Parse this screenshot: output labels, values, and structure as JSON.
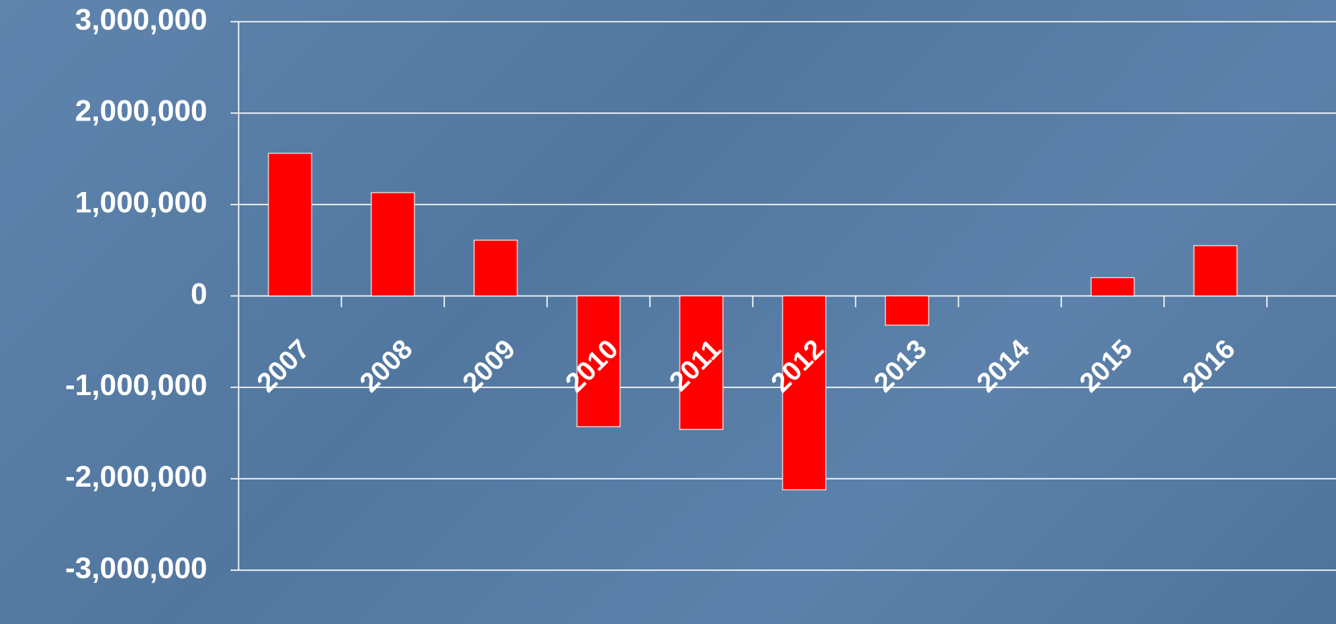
{
  "chart_data": {
    "type": "bar",
    "categories": [
      "2007",
      "2008",
      "2009",
      "2010",
      "2011",
      "2012",
      "2013",
      "2014",
      "2015",
      "2016"
    ],
    "values": [
      1560000,
      1130000,
      610000,
      -1430000,
      -1460000,
      -2120000,
      -320000,
      0,
      200000,
      550000
    ],
    "color": "#ff0000",
    "ylim": [
      -3000000,
      3000000
    ],
    "yticks": [
      {
        "value": -3000000,
        "label": "-3,000,000"
      },
      {
        "value": -2000000,
        "label": "-2,000,000"
      },
      {
        "value": -1000000,
        "label": "-1,000,000"
      },
      0,
      {
        "value": 1000000,
        "label": "1,000,000"
      },
      {
        "value": 2000000,
        "label": "2,000,000"
      },
      {
        "value": 3000000,
        "label": "3,000,000"
      }
    ],
    "grid": true
  }
}
